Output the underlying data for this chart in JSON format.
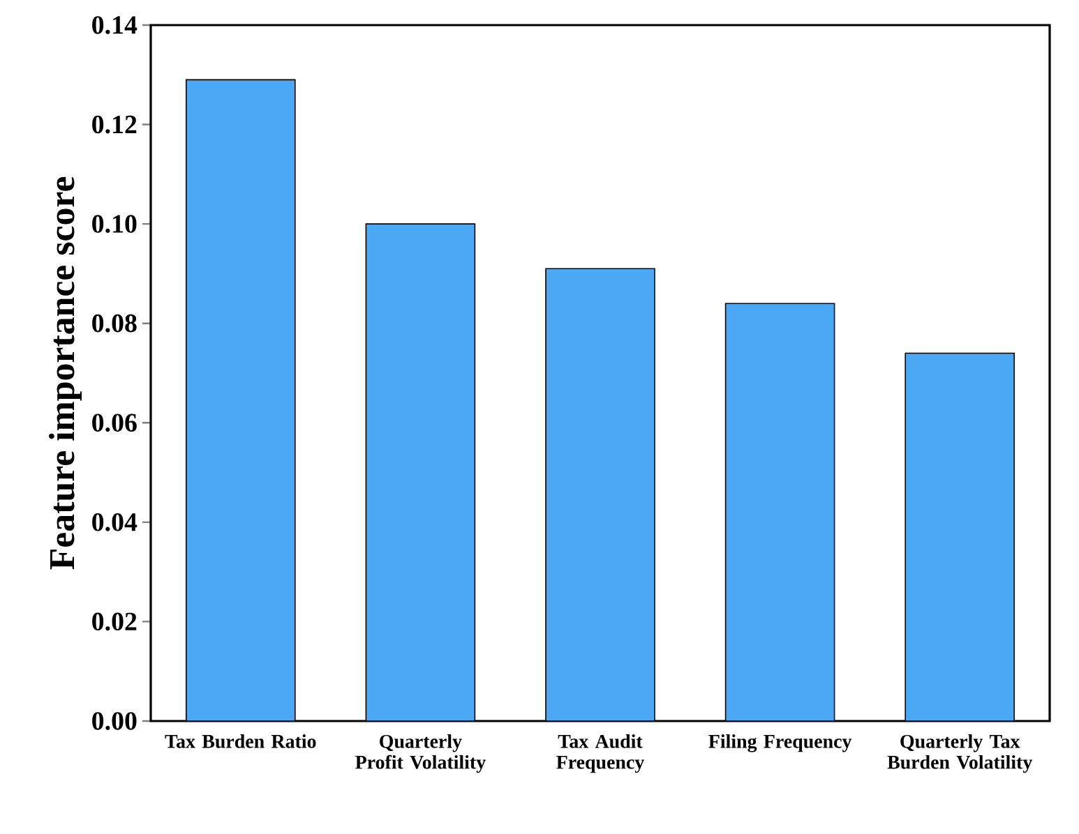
{
  "chart_data": {
    "type": "bar",
    "ylabel": "Feature importance score",
    "categories": [
      "Tax Burden Ratio",
      "Quarterly Profit Volatility",
      "Tax Audit Frequency",
      "Filing Frequency",
      "Quarterly Tax Burden Volatility"
    ],
    "values": [
      0.129,
      0.1,
      0.091,
      0.084,
      0.074
    ],
    "color": "#4aa8f5",
    "ylim": [
      0,
      0.14
    ],
    "yticks": [
      {
        "value": 0,
        "label": "0.00"
      },
      0.02,
      0.04,
      0.06,
      0.08,
      {
        "value": 0.1,
        "label": "0.10"
      },
      0.12,
      0.14
    ],
    "grid": false
  }
}
